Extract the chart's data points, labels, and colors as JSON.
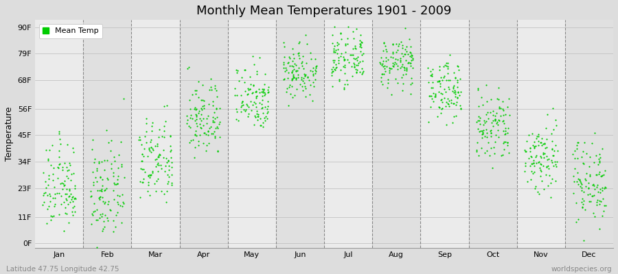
{
  "title": "Monthly Mean Temperatures 1901 - 2009",
  "ylabel": "Temperature",
  "xlabel_labels": [
    "Jan",
    "Feb",
    "Mar",
    "Apr",
    "May",
    "Jun",
    "Jul",
    "Aug",
    "Sep",
    "Oct",
    "Nov",
    "Dec"
  ],
  "ytick_labels": [
    "0F",
    "11F",
    "23F",
    "34F",
    "45F",
    "56F",
    "68F",
    "79F",
    "90F"
  ],
  "ytick_values": [
    0,
    11,
    23,
    34,
    45,
    56,
    68,
    79,
    90
  ],
  "ylim": [
    -2,
    93
  ],
  "dot_color": "#00cc00",
  "bg_even": "#ebebeb",
  "bg_odd": "#e0e0e0",
  "fig_bg": "#dddddd",
  "grid_color": "#bbbbbb",
  "legend_label": "Mean Temp",
  "footer_left": "Latitude 47.75 Longitude 42.75",
  "footer_right": "worldspecies.org",
  "monthly_means_f": [
    23,
    21,
    34,
    52,
    61,
    72,
    77,
    75,
    64,
    48,
    36,
    26
  ],
  "monthly_stds_f": [
    9,
    10,
    9,
    8,
    7,
    6,
    5,
    5,
    6,
    8,
    8,
    9
  ],
  "years": 109,
  "xlim": [
    0,
    12
  ]
}
